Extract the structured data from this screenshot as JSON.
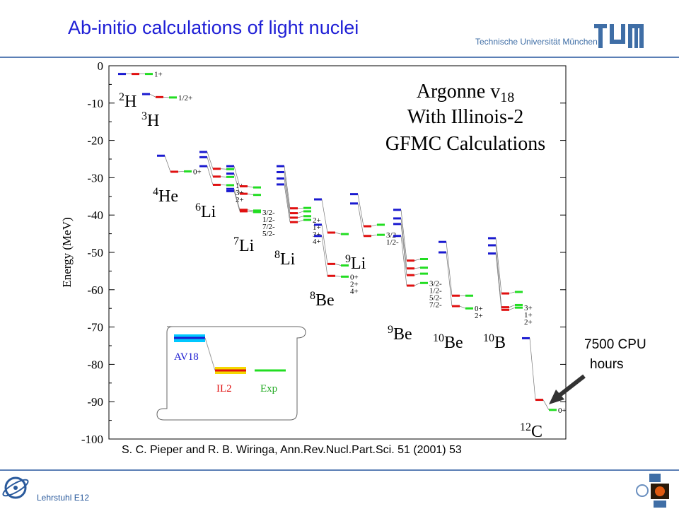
{
  "slide": {
    "title": "Ab-initio calculations of light nuclei",
    "institution": "Technische Universität München",
    "chair": "Lehrstuhl E12",
    "citation": "S. C. Pieper and R. B. Wiringa, Ann.Rev.Nucl.Part.Sci. 51 (2001) 53",
    "cpu_note": [
      "7500 CPU",
      "hours"
    ],
    "colors": {
      "title": "#1f1fd6",
      "av18": "#1a1ad0",
      "il2": "#e01010",
      "exp": "#22dd22",
      "mix": "#c030c0",
      "rule": "#5b7fb5"
    }
  },
  "chart_data": {
    "type": "level-scheme",
    "ylabel": "Energy (MeV)",
    "ylim": [
      -100,
      0
    ],
    "yticks": [
      0,
      -10,
      -20,
      -30,
      -40,
      -50,
      -60,
      -70,
      -80,
      -90,
      -100
    ],
    "title_lines": [
      "Argonne v18",
      "With Illinois-2",
      "GFMC Calculations"
    ],
    "legend": {
      "top": "AV18",
      "left": "IL2",
      "right": "Exp"
    },
    "nuclei": [
      {
        "label": "2H",
        "mass": "2",
        "el": "H",
        "levels": {
          "AV18": [
            -2.2
          ],
          "IL2": [
            -2.2
          ],
          "Exp": [
            -2.2
          ]
        },
        "spins": [
          "1+"
        ]
      },
      {
        "label": "3H",
        "mass": "3",
        "el": "H",
        "levels": {
          "AV18": [
            -7.6
          ],
          "IL2": [
            -8.4
          ],
          "Exp": [
            -8.5
          ]
        },
        "spins": [
          "1/2+"
        ]
      },
      {
        "label": "4He",
        "mass": "4",
        "el": "He",
        "levels": {
          "AV18": [
            -24.1
          ],
          "IL2": [
            -28.4
          ],
          "Exp": [
            -28.3
          ]
        },
        "spins": [
          "0+"
        ]
      },
      {
        "label": "6Li",
        "mass": "6",
        "el": "Li",
        "levels": {
          "AV18": [
            -26.9,
            -24.5,
            -23.1
          ],
          "IL2": [
            -31.9,
            -29.7,
            -27.6
          ],
          "Exp": [
            -32.0,
            -29.8,
            -27.7
          ]
        },
        "spins": [
          "1+",
          "3+",
          "2+"
        ]
      },
      {
        "label": "7Li",
        "mass": "7",
        "el": "Li",
        "levels": {
          "AV18": [
            -33.6,
            -33.0,
            -28.9,
            -26.9
          ],
          "IL2": [
            -39.0,
            -38.6,
            -34.3,
            -32.3
          ],
          "Exp": [
            -39.2,
            -38.8,
            -34.6,
            -32.6
          ]
        },
        "spins": [
          "3/2-",
          "1/2-",
          "7/2-",
          "5/2-"
        ]
      },
      {
        "label": "8Li",
        "mass": "8",
        "el": "Li",
        "levels": {
          "AV18": [
            -31.8,
            -30.2,
            -28.5,
            -26.9
          ],
          "IL2": [
            -41.9,
            -40.7,
            -39.5,
            -38.2
          ],
          "Exp": [
            -41.3,
            -40.3,
            -39.0,
            -38.1
          ]
        },
        "spins": [
          "2+",
          "1+",
          "3+",
          "4+"
        ]
      },
      {
        "label": "8Be",
        "mass": "8",
        "el": "Be",
        "levels": {
          "AV18": [
            -45.6,
            -42.6,
            -35.8
          ],
          "IL2": [
            -56.3,
            -53.1,
            -44.7
          ],
          "Exp": [
            -56.5,
            -53.5,
            -45.1
          ]
        },
        "spins": [
          "0+",
          "2+",
          "4+"
        ]
      },
      {
        "label": "9Li",
        "mass": "9",
        "el": "Li",
        "levels": {
          "AV18": [
            -36.9,
            -34.4
          ],
          "IL2": [
            -45.6,
            -43.0
          ],
          "Exp": [
            -45.3,
            -42.6
          ]
        },
        "spins": [
          "3/2-",
          "1/2-"
        ]
      },
      {
        "label": "9Be",
        "mass": "9",
        "el": "Be",
        "levels": {
          "AV18": [
            -45.6,
            -42.4,
            -40.9,
            -38.6
          ],
          "IL2": [
            -58.9,
            -56.1,
            -54.3,
            -52.2
          ],
          "Exp": [
            -58.2,
            -55.7,
            -54.1,
            -51.8
          ]
        },
        "spins": [
          "3/2-",
          "1/2-",
          "5/2-",
          "7/2-"
        ]
      },
      {
        "label": "10Be",
        "mass": "10",
        "el": "Be",
        "levels": {
          "AV18": [
            -50.0,
            -47.2
          ],
          "IL2": [
            -64.4,
            -61.6
          ],
          "Exp": [
            -65.0,
            -61.6
          ]
        },
        "spins": [
          "0+",
          "2+"
        ]
      },
      {
        "label": "10B",
        "mass": "10",
        "el": "B",
        "levels": {
          "AV18": [
            -50.3,
            -48.1,
            -46.2
          ],
          "IL2": [
            -65.4,
            -64.7,
            -61.0
          ],
          "Exp": [
            -64.8,
            -64.1,
            -60.6
          ]
        },
        "spins": [
          "3+",
          "1+",
          "2+"
        ]
      },
      {
        "label": "12C",
        "mass": "12",
        "el": "C",
        "levels": {
          "AV18": [
            -73.0
          ],
          "IL2": [
            -89.5
          ],
          "Exp": [
            -92.2
          ]
        },
        "spins": [
          "0+"
        ]
      }
    ]
  }
}
